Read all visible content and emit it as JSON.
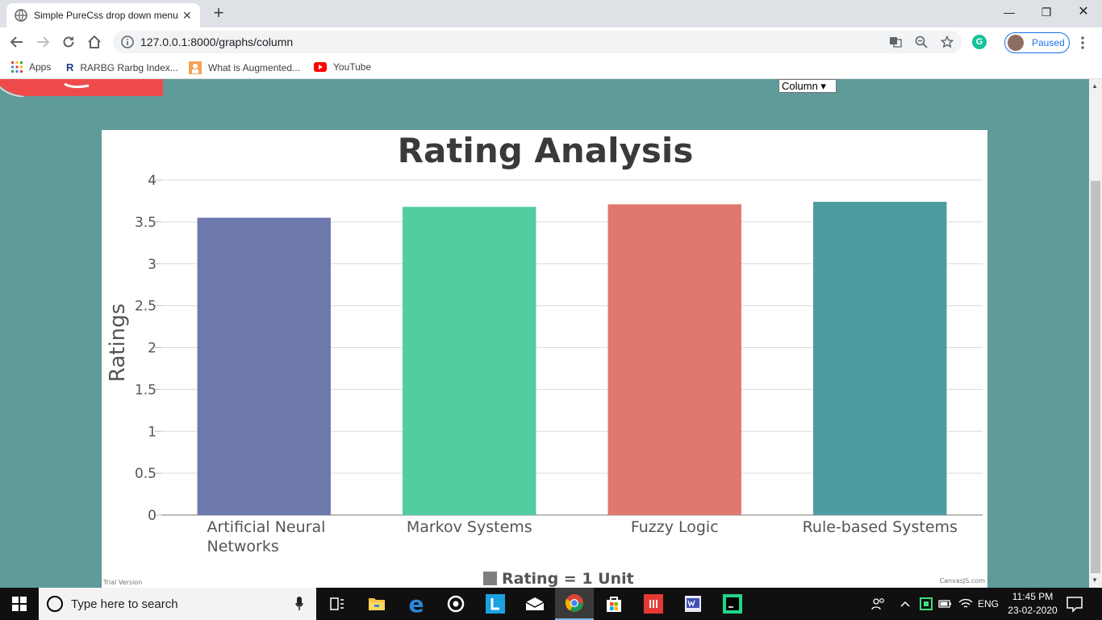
{
  "browser": {
    "tab_title": "Simple PureCss drop down menu",
    "url": "127.0.0.1:8000/graphs/column",
    "profile_status": "Paused",
    "grammarly_letter": "G",
    "bookmarks": [
      {
        "label": "Apps"
      },
      {
        "label": "RARBG Rarbg Index..."
      },
      {
        "label": "What is Augmented..."
      },
      {
        "label": "YouTube"
      }
    ]
  },
  "page": {
    "graph_select_value": "Column ▾"
  },
  "chart_data": {
    "type": "bar",
    "title": "Rating Analysis",
    "xlabel": "",
    "ylabel": "Ratings",
    "categories": [
      "Artificial Neural Networks",
      "Markov Systems",
      "Fuzzy Logic",
      "Rule-based Systems"
    ],
    "category_lines": [
      [
        "Artificial Neural",
        "Networks"
      ],
      [
        "Markov Systems"
      ],
      [
        "Fuzzy Logic"
      ],
      [
        "Rule-based Systems"
      ]
    ],
    "values": [
      3.55,
      3.68,
      3.71,
      3.74
    ],
    "colors": [
      "#6d78ad",
      "#51cda0",
      "#df7970",
      "#4c9ca0"
    ],
    "ylim": [
      0,
      4
    ],
    "yticks": [
      "0",
      "0.5",
      "1",
      "1.5",
      "2",
      "2.5",
      "3",
      "3.5",
      "4"
    ],
    "grid": true,
    "legend": "bottom",
    "legend_label": "Rating = 1 Unit",
    "watermark_left": "Trial Version",
    "watermark_right": "CanvasJS.com"
  },
  "taskbar": {
    "search_placeholder": "Type here to search",
    "language": "ENG",
    "time": "11:45 PM",
    "date": "23-02-2020"
  }
}
